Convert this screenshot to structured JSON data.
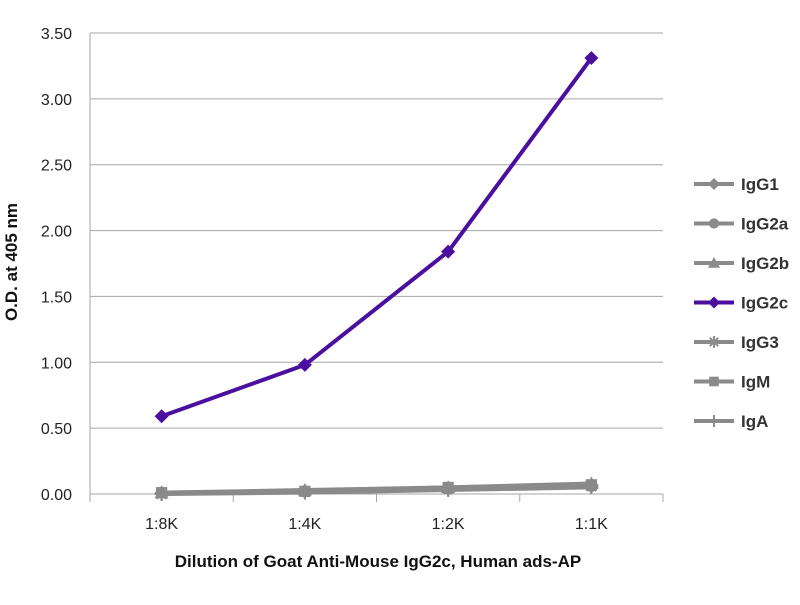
{
  "chart_data": {
    "type": "line",
    "categories": [
      "1:8K",
      "1:4K",
      "1:2K",
      "1:1K"
    ],
    "xlabel": "Dilution of Goat Anti-Mouse IgG2c, Human ads-AP",
    "ylabel": "O.D. at 405 nm",
    "ylim": [
      0,
      3.5
    ],
    "yticks": [
      "0.00",
      "0.50",
      "1.00",
      "1.50",
      "2.00",
      "2.50",
      "3.00",
      "3.50"
    ],
    "grid": "horizontal",
    "legend_position": "right",
    "series": [
      {
        "name": "IgG1",
        "marker": "diamond",
        "color": "#8a8a8a",
        "values": [
          0.01,
          0.02,
          0.04,
          0.07
        ]
      },
      {
        "name": "IgG2a",
        "marker": "circle",
        "color": "#8a8a8a",
        "values": [
          0.01,
          0.02,
          0.04,
          0.06
        ]
      },
      {
        "name": "IgG2b",
        "marker": "triangle",
        "color": "#8a8a8a",
        "values": [
          0.01,
          0.03,
          0.05,
          0.08
        ]
      },
      {
        "name": "IgG2c",
        "marker": "diamond",
        "color": "#4b0fa0",
        "values": [
          0.59,
          0.98,
          1.84,
          3.31
        ]
      },
      {
        "name": "IgG3",
        "marker": "star",
        "color": "#8a8a8a",
        "values": [
          0.0,
          0.02,
          0.04,
          0.06
        ]
      },
      {
        "name": "IgM",
        "marker": "square",
        "color": "#8a8a8a",
        "values": [
          0.01,
          0.02,
          0.05,
          0.07
        ]
      },
      {
        "name": "IgA",
        "marker": "plus",
        "color": "#8a8a8a",
        "values": [
          0.0,
          0.01,
          0.03,
          0.05
        ]
      }
    ]
  }
}
